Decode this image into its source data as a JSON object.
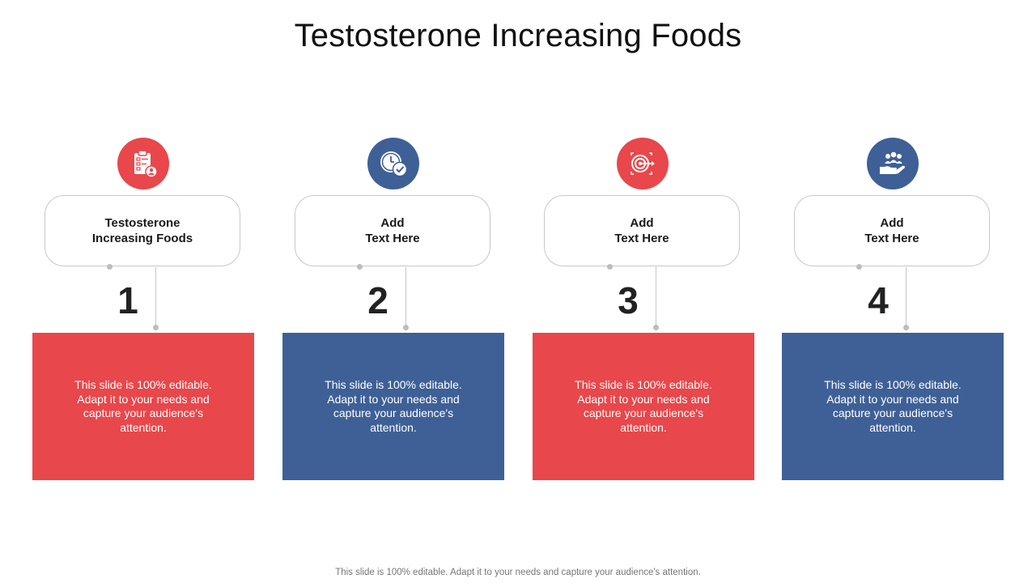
{
  "title": "Testosterone Increasing Foods",
  "colors": {
    "red": "#e8474b",
    "blue": "#3e6096",
    "connector": "#c8c8c8"
  },
  "steps": [
    {
      "number": "1",
      "heading": "Testosterone\nIncreasing Foods",
      "body": "This slide is 100% editable. Adapt it to your needs and capture your audience's attention.",
      "icon": "clipboard-user-icon",
      "color": "red"
    },
    {
      "number": "2",
      "heading": "Add\nText Here",
      "body": "This slide is 100% editable. Adapt it to your needs and capture your audience's attention.",
      "icon": "clock-check-icon",
      "color": "blue"
    },
    {
      "number": "3",
      "heading": "Add\nText Here",
      "body": "This slide is 100% editable. Adapt it to your needs and capture your audience's attention.",
      "icon": "target-arrow-icon",
      "color": "red"
    },
    {
      "number": "4",
      "heading": "Add\nText Here",
      "body": "This slide is 100% editable. Adapt it to your needs and capture your audience's attention.",
      "icon": "hand-group-icon",
      "color": "blue"
    }
  ],
  "footer": "This slide is 100% editable. Adapt it to your needs and capture your audience's attention."
}
